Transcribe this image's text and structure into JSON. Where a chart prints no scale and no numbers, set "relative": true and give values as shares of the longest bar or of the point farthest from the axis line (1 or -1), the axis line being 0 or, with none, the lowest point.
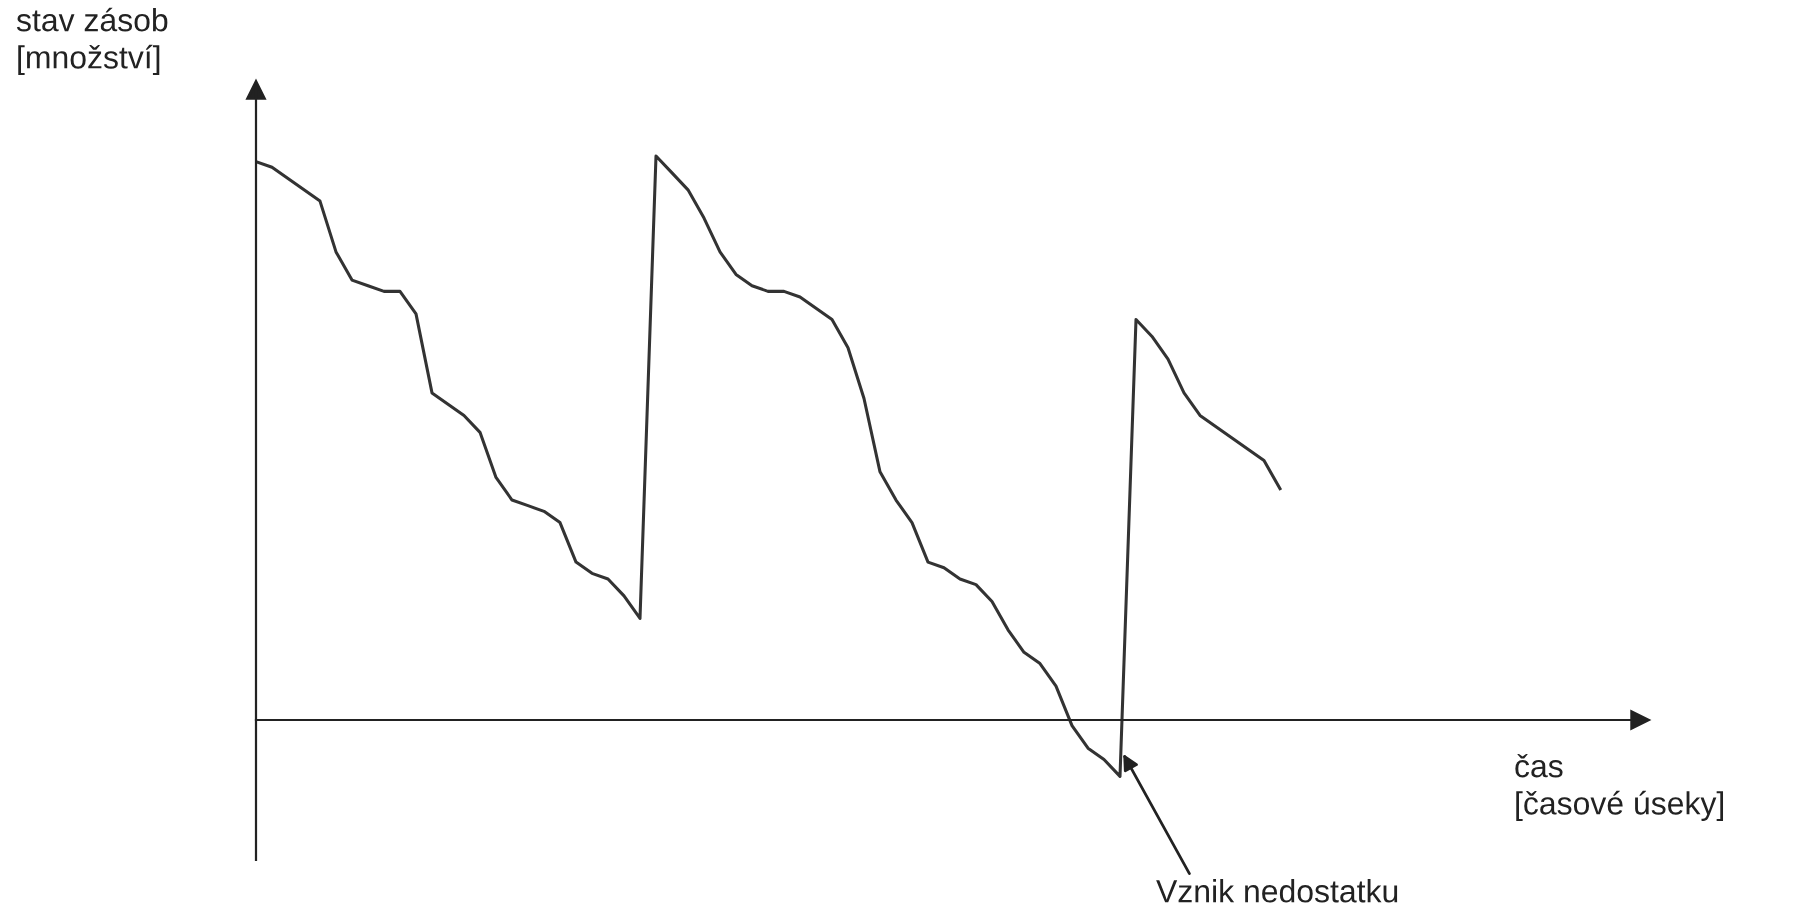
{
  "chart_data": {
    "type": "line",
    "relative": true,
    "ylabel": "stav zásob\n[množství]",
    "annotations": [
      "Vznik nedostatku",
      "čas\n[časové úseky]"
    ],
    "categories": [
      null,
      null,
      null,
      null,
      null,
      null,
      null,
      null,
      null,
      null,
      null,
      null,
      null,
      null,
      null,
      null,
      null,
      null,
      null,
      null,
      null,
      null,
      null,
      null,
      null,
      null,
      null,
      null,
      null,
      null,
      null,
      null,
      null,
      null,
      null,
      null,
      null,
      null,
      null,
      null,
      null,
      null,
      null,
      null,
      null,
      null,
      null,
      null,
      null,
      null,
      null,
      null,
      null,
      null,
      null,
      null,
      null,
      null,
      null,
      null,
      null,
      null,
      null,
      null,
      null
    ],
    "series": [
      {
        "color": "#333333",
        "values": [
          0.99,
          0.98,
          0.96,
          0.94,
          0.92,
          0.83,
          0.78,
          0.77,
          0.76,
          0.76,
          0.72,
          0.58,
          0.56,
          0.54,
          0.51,
          0.43,
          0.39,
          0.38,
          0.37,
          0.35,
          0.28,
          0.26,
          0.25,
          0.22,
          0.18,
          1.0,
          0.97,
          0.94,
          0.89,
          0.83,
          0.79,
          0.77,
          0.76,
          0.76,
          0.75,
          0.73,
          0.71,
          0.66,
          0.57,
          0.44,
          0.39,
          0.35,
          0.28,
          0.27,
          0.25,
          0.24,
          0.21,
          0.16,
          0.12,
          0.1,
          0.06,
          -0.01,
          -0.05,
          -0.07,
          -0.1,
          0.71,
          0.68,
          0.64,
          0.58,
          0.54,
          0.52,
          0.5,
          0.48,
          0.46,
          0.41
        ]
      }
    ]
  }
}
